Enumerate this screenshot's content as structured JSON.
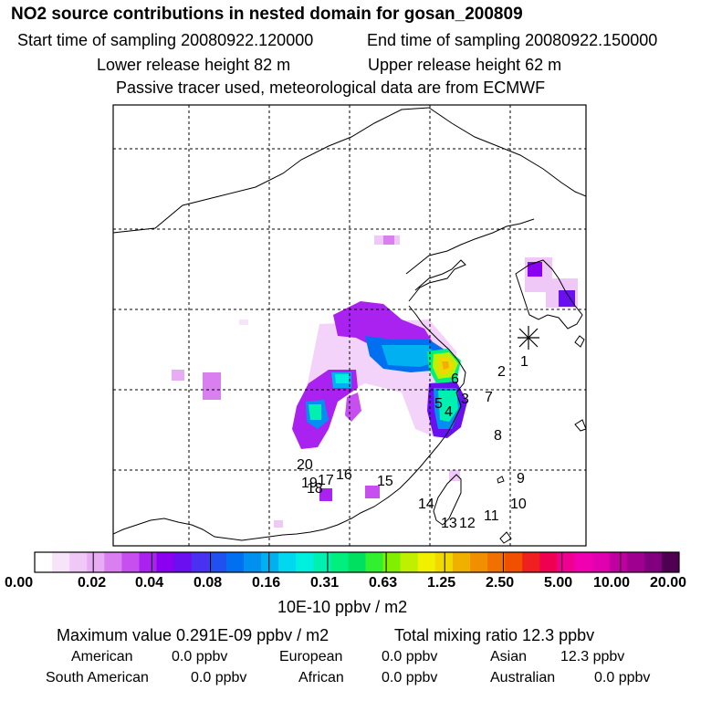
{
  "header": {
    "title": "NO2 source contributions in nested domain for gosan_200809",
    "start_time": "Start time of sampling 20080922.120000",
    "end_time": "End time of sampling 20080922.150000",
    "lower_height": "Lower release height   82 m",
    "upper_height": "Upper release height   62 m",
    "tracer_note": "Passive tracer used, meteorological data are from ECMWF"
  },
  "map": {
    "receptor_label": "1",
    "region_labels": [
      "1",
      "2",
      "3",
      "4",
      "5",
      "6",
      "7",
      "8",
      "9",
      "10",
      "11",
      "12",
      "13",
      "14",
      "15",
      "16",
      "17",
      "18",
      "19",
      "20"
    ]
  },
  "colorbar": {
    "tick_labels": [
      "0.00",
      "0.02",
      "0.04",
      "0.08",
      "0.16",
      "0.31",
      "0.63",
      "1.25",
      "2.50",
      "5.00",
      "10.00",
      "20.00"
    ],
    "units": "10E-10 ppbv / m2",
    "colors": [
      "#ffffff",
      "#f7e4fb",
      "#f0c8f8",
      "#e8acf4",
      "#d97ff0",
      "#c74ff0",
      "#aa22f0",
      "#8a00f0",
      "#6a10f0",
      "#4a30f0",
      "#2050f0",
      "#0070f0",
      "#0090f0",
      "#00b0f0",
      "#00d8f0",
      "#00f0e0",
      "#00f0b0",
      "#00f080",
      "#00e060",
      "#30f030",
      "#80f000",
      "#c0f000",
      "#f0f000",
      "#f0d800",
      "#f0b000",
      "#f09000",
      "#f07000",
      "#f05000",
      "#f02020",
      "#f00050",
      "#f00090",
      "#f000b0",
      "#e000b0",
      "#c000a0",
      "#a00090",
      "#800080",
      "#500050"
    ]
  },
  "summary": {
    "max_value": "Maximum value  0.291E-09 ppbv / m2",
    "total_mixing": "Total mixing ratio       12.3 ppbv",
    "american_label": "American",
    "american_value": "0.0 ppbv",
    "european_label": "European",
    "european_value": "0.0 ppbv",
    "asian_label": "Asian",
    "asian_value": "12.3 ppbv",
    "south_american_label": "South American",
    "south_american_value": "0.0 ppbv",
    "african_label": "African",
    "african_value": "0.0 ppbv",
    "australian_label": "Australian",
    "australian_value": "0.0 ppbv"
  }
}
